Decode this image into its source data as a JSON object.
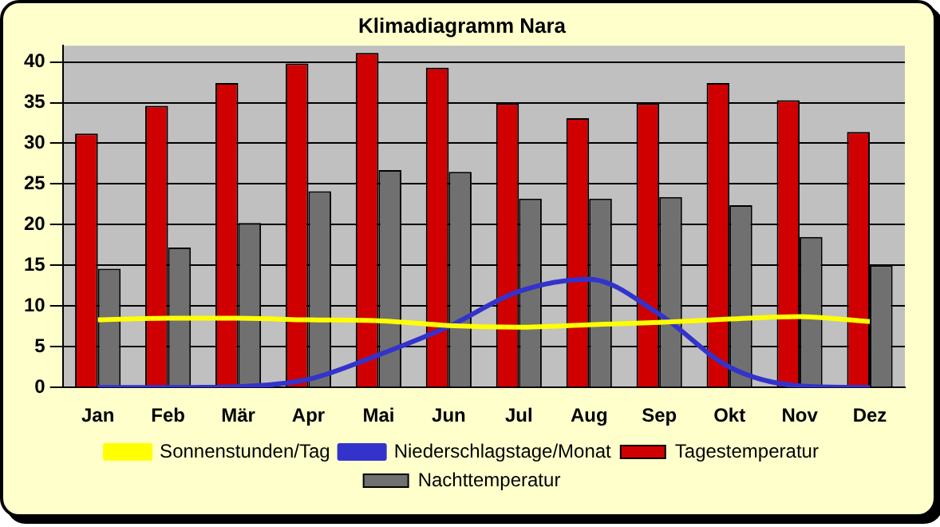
{
  "chart_data": {
    "type": "bar",
    "title": "Klimadiagramm Nara",
    "categories": [
      "Jan",
      "Feb",
      "Mär",
      "Apr",
      "Mai",
      "Jun",
      "Jul",
      "Aug",
      "Sep",
      "Okt",
      "Nov",
      "Dez"
    ],
    "series": [
      {
        "name": "Tagestemperatur",
        "color": "#d00000",
        "values": [
          31.2,
          34.6,
          37.4,
          39.8,
          41.1,
          39.3,
          34.9,
          33.1,
          34.9,
          37.4,
          35.3,
          31.4
        ]
      },
      {
        "name": "Nachttemperatur",
        "color": "#707070",
        "values": [
          14.6,
          17.2,
          20.2,
          24.1,
          26.7,
          26.5,
          23.2,
          23.2,
          23.4,
          22.4,
          18.5,
          15.0
        ]
      },
      {
        "name": "Sonnenstunden/Tag",
        "color": "#ffff00",
        "type": "line",
        "values": [
          8.3,
          8.5,
          8.5,
          8.3,
          8.2,
          7.6,
          7.4,
          7.7,
          8.0,
          8.4,
          8.7,
          8.1
        ]
      },
      {
        "name": "Niederschlagstage/Monat",
        "color": "#3333cc",
        "type": "line",
        "values": [
          0,
          0,
          0.1,
          1.0,
          4.0,
          7.5,
          11.8,
          13.3,
          9.0,
          2.5,
          0.2,
          0
        ]
      }
    ],
    "ylim": [
      0,
      42
    ],
    "yticks": [
      0,
      5,
      10,
      15,
      20,
      25,
      30,
      35,
      40
    ],
    "grid": "y",
    "legend": "bottom",
    "marker": "none",
    "line_style": "solid"
  }
}
